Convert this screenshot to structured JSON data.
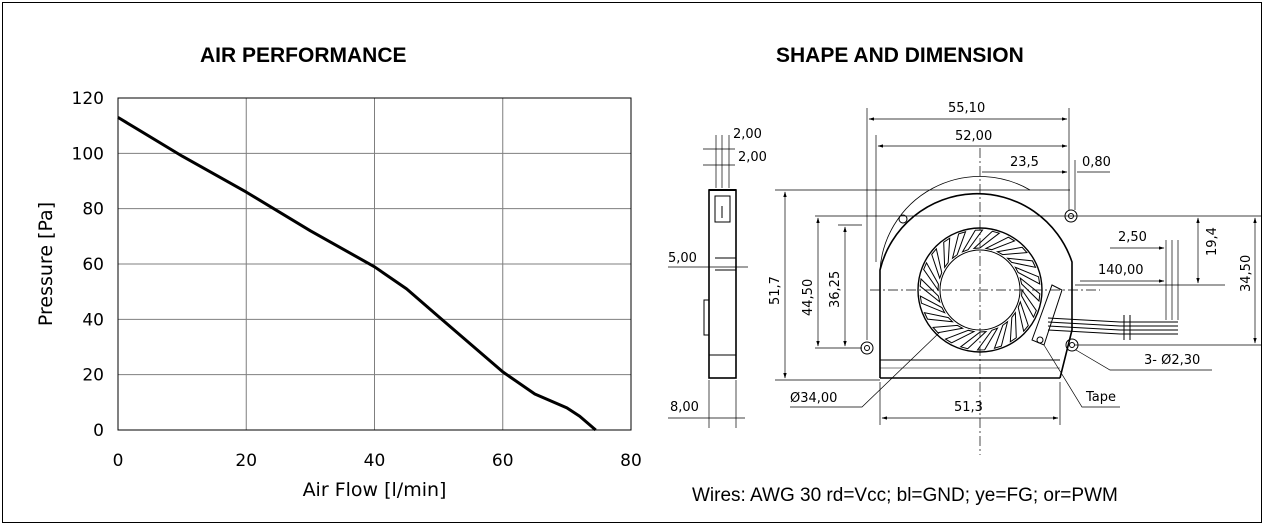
{
  "left_panel": {
    "title": "AIR PERFORMANCE"
  },
  "right_panel": {
    "title": "SHAPE AND DIMENSION",
    "wires_note": "Wires: AWG 30 rd=Vcc; bl=GND; ye=FG; or=PWM",
    "dimensions": {
      "side_width_top_1": "2,00",
      "side_width_top_2": "2,00",
      "side_left_cut": "5,00",
      "side_bottom": "8,00",
      "overall_width": "55,10",
      "body_width": "52,00",
      "center_offset": "23,5",
      "tab_offset": "0,80",
      "wire_pitch": "2,50",
      "wire_length": "140,00",
      "wire_height": "19,4",
      "right_height": "34,50",
      "overall_height": "51,7",
      "body_height": "44,50",
      "inner_height": "36,25",
      "bottom_width": "51,3",
      "rotor_dia": "Ø34,00",
      "holes": "3- Ø2,30",
      "tape": "Tape"
    }
  },
  "chart_data": {
    "type": "line",
    "title": "AIR PERFORMANCE",
    "xlabel": "Air Flow [l/min]",
    "ylabel": "Pressure [Pa]",
    "xlim": [
      0,
      80
    ],
    "ylim": [
      0,
      120
    ],
    "xticks": [
      0,
      20,
      40,
      60,
      80
    ],
    "yticks": [
      0,
      20,
      40,
      60,
      80,
      100,
      120
    ],
    "grid": true,
    "series": [
      {
        "x": [
          0,
          10,
          20,
          30,
          40,
          45,
          50,
          55,
          60,
          65,
          70,
          72,
          74.5
        ],
        "y": [
          113,
          99,
          86,
          72,
          59,
          51,
          41,
          31,
          21,
          13,
          8,
          5,
          0
        ]
      }
    ]
  },
  "colors": {
    "line": "#000000",
    "grid": "#7f7f7f",
    "frame": "#000000"
  }
}
